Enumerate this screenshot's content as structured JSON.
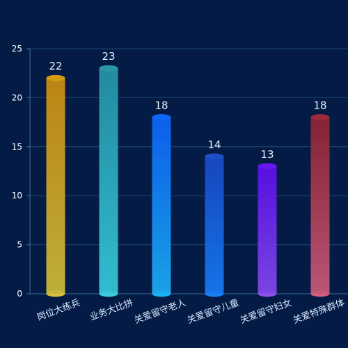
{
  "chart_data": {
    "type": "bar",
    "categories": [
      "岗位大练兵",
      "业务大比拼",
      "关爱留守老人",
      "关爱留守儿童",
      "关爱留守妇女",
      "关爱特殊群体"
    ],
    "values": [
      22,
      23,
      18,
      14,
      13,
      18
    ],
    "value_labels": [
      "22",
      "23",
      "18",
      "14",
      "13",
      "18"
    ],
    "ylim": [
      0,
      25
    ],
    "yticks": [
      0,
      5,
      10,
      15,
      20,
      25
    ],
    "ytick_labels": [
      "0",
      "5",
      "10",
      "15",
      "20",
      "25"
    ],
    "grid": true,
    "colors": {
      "background": "#041c45",
      "grid": "#1b4670",
      "axis": "#3d6fa3",
      "tick_label": "#ffffff",
      "category_label": "#d9e6ff",
      "value_label": "#e9eef9",
      "bar_gradients": [
        [
          "#c58a12",
          "#c8b63a"
        ],
        [
          "#2490a4",
          "#34c4d7"
        ],
        [
          "#0c62f2",
          "#1ba8ee"
        ],
        [
          "#1848c4",
          "#1578f0"
        ],
        [
          "#5a0fe8",
          "#7f48e8"
        ],
        [
          "#8a2233",
          "#c45877"
        ]
      ],
      "bar_tops": [
        "#d39a12",
        "#2a96a8",
        "#0e66f8",
        "#1e4ec8",
        "#6a16f0",
        "#9a2a3a"
      ],
      "bar_bottoms": [
        "#d8c040",
        "#3ad0e0",
        "#1ab4f6",
        "#1782f4",
        "#8b52ec",
        "#d0607e"
      ]
    }
  }
}
